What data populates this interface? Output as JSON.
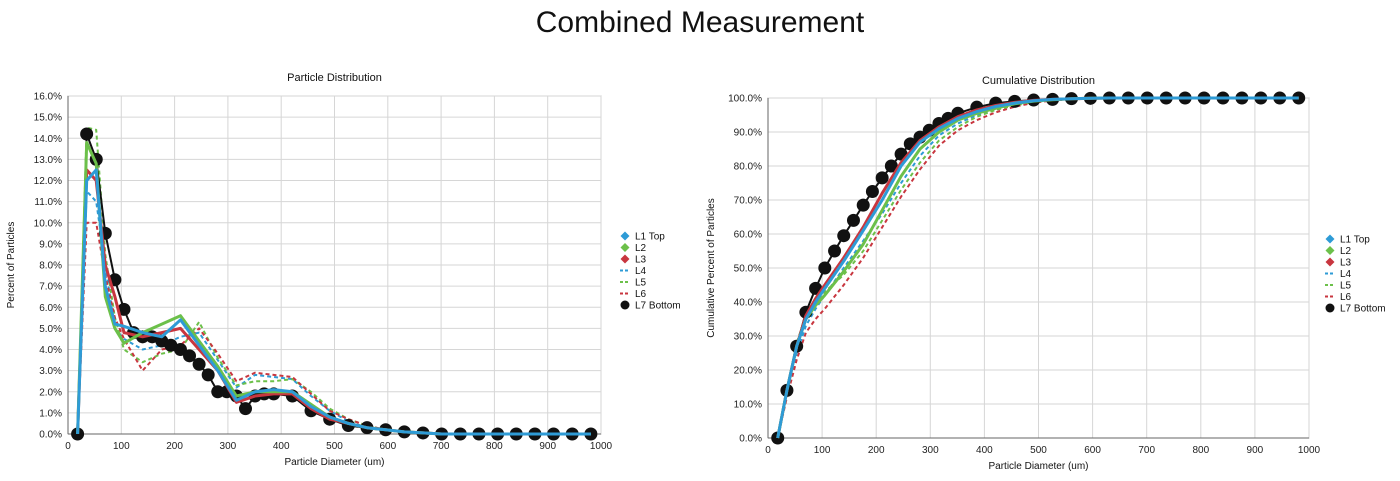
{
  "page_title": "Combined Measurement",
  "chart_data": [
    {
      "type": "line",
      "title": "Particle Distribution",
      "xlabel": "Particle Diameter (um)",
      "ylabel": "Percent of Particles",
      "xlim": [
        0,
        1000
      ],
      "ylim": [
        0,
        16
      ],
      "x_ticks": [
        "0",
        "100",
        "200",
        "300",
        "400",
        "500",
        "600",
        "700",
        "800",
        "900",
        "1000"
      ],
      "y_ticks": [
        "0.0%",
        "1.0%",
        "2.0%",
        "3.0%",
        "4.0%",
        "5.0%",
        "6.0%",
        "7.0%",
        "8.0%",
        "9.0%",
        "10.0%",
        "11.0%",
        "12.0%",
        "13.0%",
        "14.0%",
        "15.0%",
        "16.0%"
      ],
      "grid": true,
      "legend_position": "right",
      "series": [
        {
          "name": "L1 Top",
          "color": "#2e9bd6",
          "style": "solid",
          "marker": "diamond",
          "x": [
            18,
            35,
            53,
            70,
            88,
            105,
            140,
            176,
            211,
            246,
            281,
            316,
            351,
            386,
            421,
            456,
            491,
            526,
            561,
            596,
            631,
            666,
            701,
            736,
            771,
            806,
            841,
            876,
            911,
            946,
            981
          ],
          "y": [
            0,
            12.0,
            12.5,
            7.0,
            5.2,
            5.1,
            4.8,
            4.6,
            5.4,
            4.2,
            3.0,
            1.6,
            2.0,
            2.1,
            2.0,
            1.3,
            0.8,
            0.5,
            0.3,
            0.2,
            0.1,
            0.05,
            0,
            0,
            0,
            0,
            0,
            0,
            0,
            0,
            0
          ]
        },
        {
          "name": "L2",
          "color": "#6cc04a",
          "style": "solid",
          "marker": "diamond",
          "x": [
            18,
            35,
            53,
            70,
            88,
            105,
            140,
            176,
            211,
            246,
            281,
            316,
            351,
            386,
            421,
            456,
            491,
            526,
            561,
            596,
            631,
            666,
            701,
            736,
            771,
            806,
            841,
            876,
            911,
            946,
            981
          ],
          "y": [
            0,
            13.8,
            12.8,
            6.5,
            5.0,
            4.3,
            4.8,
            5.2,
            5.6,
            4.4,
            3.2,
            1.8,
            2.0,
            2.0,
            2.0,
            1.4,
            0.8,
            0.5,
            0.3,
            0.2,
            0.1,
            0.05,
            0,
            0,
            0,
            0,
            0,
            0,
            0,
            0,
            0
          ]
        },
        {
          "name": "L3",
          "color": "#c8363f",
          "style": "solid",
          "marker": "diamond",
          "x": [
            18,
            35,
            53,
            70,
            88,
            105,
            140,
            176,
            211,
            246,
            281,
            316,
            351,
            386,
            421,
            456,
            491,
            526,
            561,
            596,
            631,
            666,
            701,
            736,
            771,
            806,
            841,
            876,
            911,
            946,
            981
          ],
          "y": [
            0,
            12.5,
            12.0,
            8.0,
            6.5,
            4.8,
            4.6,
            4.8,
            5.0,
            4.0,
            3.0,
            1.5,
            1.8,
            1.9,
            1.9,
            1.2,
            0.7,
            0.5,
            0.3,
            0.2,
            0.1,
            0.05,
            0,
            0,
            0,
            0,
            0,
            0,
            0,
            0,
            0
          ]
        },
        {
          "name": "L4",
          "color": "#2e9bd6",
          "style": "dashed",
          "marker": "none",
          "x": [
            18,
            35,
            53,
            70,
            88,
            105,
            140,
            176,
            211,
            246,
            281,
            316,
            351,
            386,
            421,
            456,
            491,
            526,
            561,
            596,
            631,
            666,
            701,
            736,
            771,
            806,
            841,
            876,
            911,
            946,
            981
          ],
          "y": [
            0,
            11.5,
            11.0,
            8.0,
            5.0,
            4.5,
            4.0,
            4.2,
            4.6,
            4.8,
            3.5,
            2.2,
            2.8,
            2.7,
            2.6,
            1.8,
            1.1,
            0.6,
            0.3,
            0.2,
            0.1,
            0.05,
            0,
            0,
            0,
            0,
            0,
            0,
            0,
            0,
            0
          ]
        },
        {
          "name": "L5",
          "color": "#6cc04a",
          "style": "dashed",
          "marker": "none",
          "x": [
            18,
            35,
            53,
            70,
            88,
            105,
            140,
            176,
            211,
            246,
            281,
            316,
            351,
            386,
            421,
            456,
            491,
            526,
            561,
            596,
            631,
            666,
            701,
            736,
            771,
            806,
            841,
            876,
            911,
            946,
            981
          ],
          "y": [
            0,
            14.5,
            14.4,
            8.5,
            5.5,
            4.0,
            3.4,
            3.8,
            4.0,
            5.3,
            3.6,
            2.3,
            2.5,
            2.5,
            2.6,
            2.0,
            1.2,
            0.7,
            0.4,
            0.2,
            0.1,
            0.05,
            0,
            0,
            0,
            0,
            0,
            0,
            0,
            0,
            0
          ]
        },
        {
          "name": "L6",
          "color": "#c8363f",
          "style": "dashed",
          "marker": "none",
          "x": [
            18,
            35,
            53,
            70,
            88,
            105,
            140,
            176,
            211,
            246,
            281,
            316,
            351,
            386,
            421,
            456,
            491,
            526,
            561,
            596,
            631,
            666,
            701,
            736,
            771,
            806,
            841,
            876,
            911,
            946,
            981
          ],
          "y": [
            0,
            10.0,
            10.0,
            7.5,
            5.5,
            4.5,
            3.0,
            4.0,
            4.2,
            5.0,
            3.8,
            2.5,
            2.9,
            2.8,
            2.7,
            1.9,
            1.1,
            0.7,
            0.4,
            0.2,
            0.1,
            0.05,
            0,
            0,
            0,
            0,
            0,
            0,
            0,
            0,
            0
          ]
        },
        {
          "name": "L7 Bottom",
          "color": "#111111",
          "style": "solid",
          "marker": "circle",
          "x": [
            18,
            35,
            53,
            70,
            88,
            105,
            123,
            140,
            158,
            176,
            193,
            211,
            228,
            246,
            263,
            281,
            298,
            316,
            333,
            351,
            368,
            386,
            421,
            456,
            491,
            526,
            561,
            596,
            631,
            666,
            701,
            736,
            771,
            806,
            841,
            876,
            911,
            946,
            981
          ],
          "y": [
            0,
            14.2,
            13.0,
            9.5,
            7.3,
            5.9,
            4.8,
            4.6,
            4.6,
            4.4,
            4.2,
            4.0,
            3.7,
            3.3,
            2.8,
            2.0,
            2.0,
            1.8,
            1.2,
            1.8,
            1.9,
            1.9,
            1.8,
            1.1,
            0.7,
            0.4,
            0.3,
            0.2,
            0.1,
            0.05,
            0,
            0,
            0,
            0,
            0,
            0,
            0,
            0,
            0
          ]
        }
      ]
    },
    {
      "type": "line",
      "title": "Cumulative Distribution",
      "xlabel": "Particle Diameter (um)",
      "ylabel": "Cumulative Percent of Particles",
      "xlim": [
        0,
        1000
      ],
      "ylim": [
        0,
        100
      ],
      "x_ticks": [
        "0",
        "100",
        "200",
        "300",
        "400",
        "500",
        "600",
        "700",
        "800",
        "900",
        "1000"
      ],
      "y_ticks": [
        "0.0%",
        "10.0%",
        "20.0%",
        "30.0%",
        "40.0%",
        "50.0%",
        "60.0%",
        "70.0%",
        "80.0%",
        "90.0%",
        "100.0%"
      ],
      "grid": true,
      "legend_position": "right",
      "series": [
        {
          "name": "L1 Top",
          "color": "#2e9bd6",
          "style": "solid",
          "marker": "diamond",
          "x": [
            18,
            35,
            53,
            70,
            88,
            105,
            140,
            176,
            211,
            246,
            281,
            316,
            351,
            386,
            421,
            456,
            491,
            526,
            561,
            596,
            631,
            666,
            701,
            736,
            771,
            806,
            841,
            876,
            911,
            946,
            981
          ],
          "y": [
            0,
            14,
            27,
            35,
            40,
            44,
            52,
            61,
            70,
            80,
            87,
            91,
            94,
            96,
            97.5,
            98.5,
            99.2,
            99.6,
            99.8,
            99.9,
            100,
            100,
            100,
            100,
            100,
            100,
            100,
            100,
            100,
            100,
            100
          ]
        },
        {
          "name": "L2",
          "color": "#6cc04a",
          "style": "solid",
          "marker": "diamond",
          "x": [
            18,
            35,
            53,
            70,
            88,
            105,
            140,
            176,
            211,
            246,
            281,
            316,
            351,
            386,
            421,
            456,
            491,
            526,
            561,
            596,
            631,
            666,
            701,
            736,
            771,
            806,
            841,
            876,
            911,
            946,
            981
          ],
          "y": [
            0,
            14,
            27,
            35,
            39,
            42,
            49,
            57,
            67,
            77,
            85,
            90,
            93.5,
            95.5,
            97,
            98.3,
            99.1,
            99.5,
            99.8,
            99.9,
            100,
            100,
            100,
            100,
            100,
            100,
            100,
            100,
            100,
            100,
            100
          ]
        },
        {
          "name": "L3",
          "color": "#c8363f",
          "style": "solid",
          "marker": "diamond",
          "x": [
            18,
            35,
            53,
            70,
            88,
            105,
            140,
            176,
            211,
            246,
            281,
            316,
            351,
            386,
            421,
            456,
            491,
            526,
            561,
            596,
            631,
            666,
            701,
            736,
            771,
            806,
            841,
            876,
            911,
            946,
            981
          ],
          "y": [
            0,
            14,
            27,
            36,
            41,
            45,
            53,
            62,
            72,
            81,
            87.5,
            91.5,
            94.5,
            96.5,
            97.8,
            98.7,
            99.3,
            99.6,
            99.8,
            99.9,
            100,
            100,
            100,
            100,
            100,
            100,
            100,
            100,
            100,
            100,
            100
          ]
        },
        {
          "name": "L4",
          "color": "#2e9bd6",
          "style": "dashed",
          "marker": "none",
          "x": [
            18,
            35,
            53,
            70,
            88,
            105,
            140,
            176,
            211,
            246,
            281,
            316,
            351,
            386,
            421,
            456,
            491,
            526,
            561,
            596,
            631,
            666,
            701,
            736,
            771,
            806,
            841,
            876,
            911,
            946,
            981
          ],
          "y": [
            0,
            13,
            25,
            33,
            38,
            42,
            50,
            58,
            66,
            75,
            83,
            89,
            92.5,
            95,
            96.8,
            98,
            98.9,
            99.4,
            99.7,
            99.9,
            100,
            100,
            100,
            100,
            100,
            100,
            100,
            100,
            100,
            100,
            100
          ]
        },
        {
          "name": "L5",
          "color": "#6cc04a",
          "style": "dashed",
          "marker": "none",
          "x": [
            18,
            35,
            53,
            70,
            88,
            105,
            140,
            176,
            211,
            246,
            281,
            316,
            351,
            386,
            421,
            456,
            491,
            526,
            561,
            596,
            631,
            666,
            701,
            736,
            771,
            806,
            841,
            876,
            911,
            946,
            981
          ],
          "y": [
            0,
            14,
            28,
            36,
            40,
            43,
            48,
            55,
            64,
            73,
            81,
            87.5,
            91.5,
            94.5,
            96.5,
            97.8,
            98.8,
            99.4,
            99.7,
            99.9,
            100,
            100,
            100,
            100,
            100,
            100,
            100,
            100,
            100,
            100,
            100
          ]
        },
        {
          "name": "L6",
          "color": "#c8363f",
          "style": "dashed",
          "marker": "none",
          "x": [
            18,
            35,
            53,
            70,
            88,
            105,
            140,
            176,
            211,
            246,
            281,
            316,
            351,
            386,
            421,
            456,
            491,
            526,
            561,
            596,
            631,
            666,
            701,
            736,
            771,
            806,
            841,
            876,
            911,
            946,
            981
          ],
          "y": [
            0,
            12,
            23,
            31,
            35,
            38,
            45,
            53,
            62,
            71,
            79,
            86,
            90.5,
            93.5,
            95.8,
            97.4,
            98.6,
            99.3,
            99.6,
            99.8,
            100,
            100,
            100,
            100,
            100,
            100,
            100,
            100,
            100,
            100,
            100
          ]
        },
        {
          "name": "L7 Bottom",
          "color": "#111111",
          "style": "solid",
          "marker": "circle",
          "x": [
            18,
            35,
            53,
            70,
            88,
            105,
            123,
            140,
            158,
            176,
            193,
            211,
            228,
            246,
            263,
            281,
            298,
            316,
            333,
            351,
            386,
            421,
            456,
            491,
            526,
            561,
            596,
            631,
            666,
            701,
            736,
            771,
            806,
            841,
            876,
            911,
            946,
            981
          ],
          "y": [
            0,
            14,
            27,
            37,
            44,
            50,
            55,
            59.5,
            64,
            68.5,
            72.5,
            76.5,
            80,
            83.5,
            86.5,
            88.5,
            90.5,
            92.5,
            94,
            95.5,
            97.3,
            98.5,
            99,
            99.4,
            99.6,
            99.8,
            99.9,
            100,
            100,
            100,
            100,
            100,
            100,
            100,
            100,
            100,
            100,
            100
          ]
        }
      ]
    }
  ]
}
